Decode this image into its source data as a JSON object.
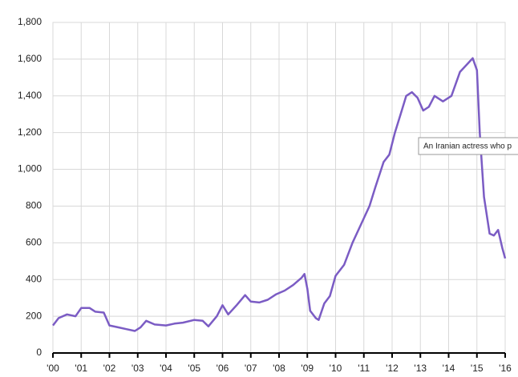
{
  "chart_data": {
    "type": "line",
    "annotation": "An Iranian actress who p",
    "x": [
      2000.0,
      2000.2,
      2000.5,
      2000.8,
      2001.0,
      2001.3,
      2001.5,
      2001.8,
      2002.0,
      2002.3,
      2002.6,
      2002.9,
      2003.1,
      2003.3,
      2003.6,
      2004.0,
      2004.3,
      2004.6,
      2005.0,
      2005.3,
      2005.5,
      2005.8,
      2006.0,
      2006.2,
      2006.5,
      2006.8,
      2007.0,
      2007.3,
      2007.6,
      2007.9,
      2008.2,
      2008.5,
      2008.8,
      2008.9,
      2009.0,
      2009.1,
      2009.3,
      2009.4,
      2009.6,
      2009.8,
      2010.0,
      2010.3,
      2010.6,
      2010.9,
      2011.2,
      2011.4,
      2011.7,
      2011.9,
      2012.1,
      2012.3,
      2012.5,
      2012.7,
      2012.9,
      2013.1,
      2013.3,
      2013.5,
      2013.8,
      2014.1,
      2014.4,
      2014.7,
      2014.85,
      2015.0,
      2015.1,
      2015.25,
      2015.45,
      2015.6,
      2015.75,
      2015.9,
      2016.0
    ],
    "series": [
      {
        "color": "#7b5cc4",
        "values": [
          150,
          190,
          210,
          200,
          245,
          245,
          225,
          220,
          150,
          140,
          130,
          120,
          140,
          175,
          155,
          150,
          160,
          165,
          180,
          175,
          145,
          200,
          260,
          210,
          260,
          315,
          280,
          275,
          290,
          320,
          340,
          370,
          410,
          430,
          350,
          230,
          190,
          180,
          270,
          310,
          420,
          480,
          600,
          700,
          800,
          900,
          1040,
          1080,
          1200,
          1300,
          1400,
          1420,
          1390,
          1320,
          1340,
          1400,
          1370,
          1400,
          1530,
          1580,
          1605,
          1540,
          1200,
          850,
          650,
          640,
          670,
          570,
          515
        ]
      }
    ],
    "xlim": [
      2000,
      2016
    ],
    "xticks": [
      {
        "value": 2000,
        "label": "'00"
      },
      {
        "value": 2001,
        "label": "'01"
      },
      {
        "value": 2002,
        "label": "'02"
      },
      {
        "value": 2003,
        "label": "'03"
      },
      {
        "value": 2004,
        "label": "'04"
      },
      {
        "value": 2005,
        "label": "'05"
      },
      {
        "value": 2006,
        "label": "'06"
      },
      {
        "value": 2007,
        "label": "'07"
      },
      {
        "value": 2008,
        "label": "'08"
      },
      {
        "value": 2009,
        "label": "'09"
      },
      {
        "value": 2010,
        "label": "'10"
      },
      {
        "value": 2011,
        "label": "'11"
      },
      {
        "value": 2012,
        "label": "'12"
      },
      {
        "value": 2013,
        "label": "'13"
      },
      {
        "value": 2014,
        "label": "'14"
      },
      {
        "value": 2015,
        "label": "'15"
      },
      {
        "value": 2016,
        "label": "'16"
      }
    ],
    "ylim": [
      0,
      1800
    ],
    "yticks": [
      0,
      200,
      400,
      600,
      800,
      {
        "value": 1000,
        "label": "1,000"
      },
      {
        "value": 1200,
        "label": "1,200"
      },
      {
        "value": 1400,
        "label": "1,400"
      },
      {
        "value": 1600,
        "label": "1,600"
      },
      {
        "value": 1800,
        "label": "1,800"
      }
    ],
    "grid": true
  }
}
